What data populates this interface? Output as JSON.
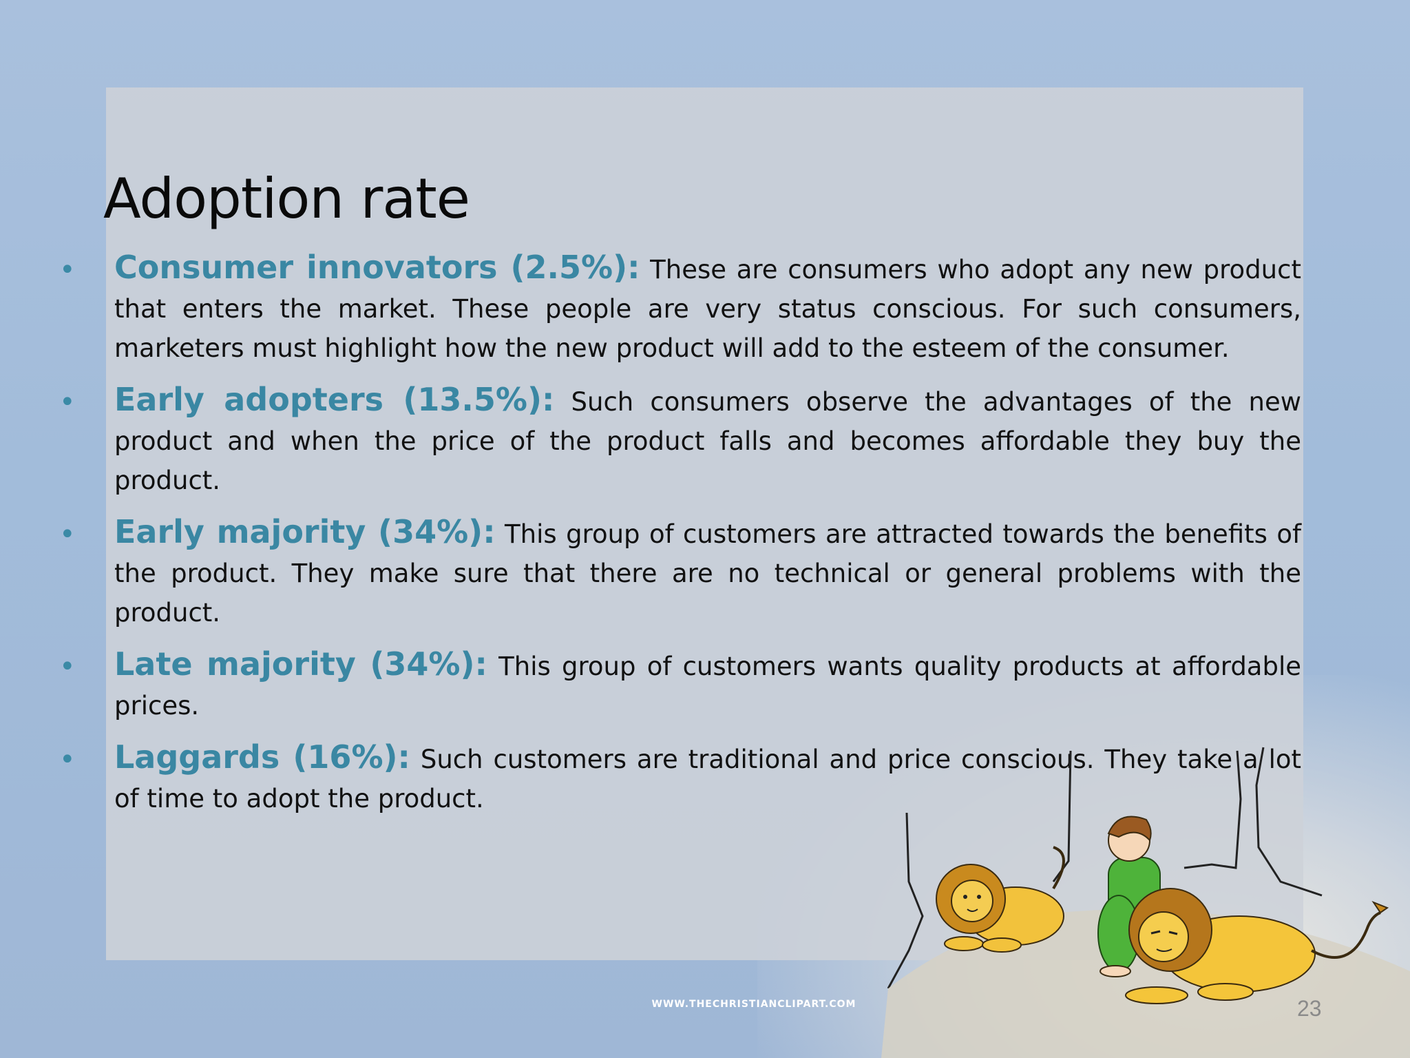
{
  "slide": {
    "title": "Adoption rate",
    "bullets": [
      {
        "term": "Consumer innovators (2.5%):",
        "text": " These are consumers who adopt any new product that enters the market. These people are very status conscious. For such consumers, marketers must highlight how the new product will add to the esteem of the  consumer."
      },
      {
        "term": "Early adopters (13.5%):",
        "text": " Such consumers observe the advantages of the new product and when the price of the product falls and becomes affordable they buy the product."
      },
      {
        "term": "Early majority (34%):",
        "text": " This group of customers are attracted towards the benefits of the product. They make sure that there are no technical or general problems with the product."
      },
      {
        "term": "Late majority (34%):",
        "text": " This group of customers wants quality products at affordable prices."
      },
      {
        "term": "Laggards (16%):",
        "text": " Such customers are traditional and price conscious. They take a lot of time to adopt the product."
      }
    ],
    "bullet_glyph": "•",
    "credit": "WWW.THECHRISTIANCLIPART.COM",
    "page_number": "23"
  },
  "colors": {
    "accent": "#3a87a3",
    "background": "#a9c0dd",
    "panel": "#cdd2d8"
  },
  "illustration": {
    "icon": "daniel-in-lions-den-illustration"
  }
}
